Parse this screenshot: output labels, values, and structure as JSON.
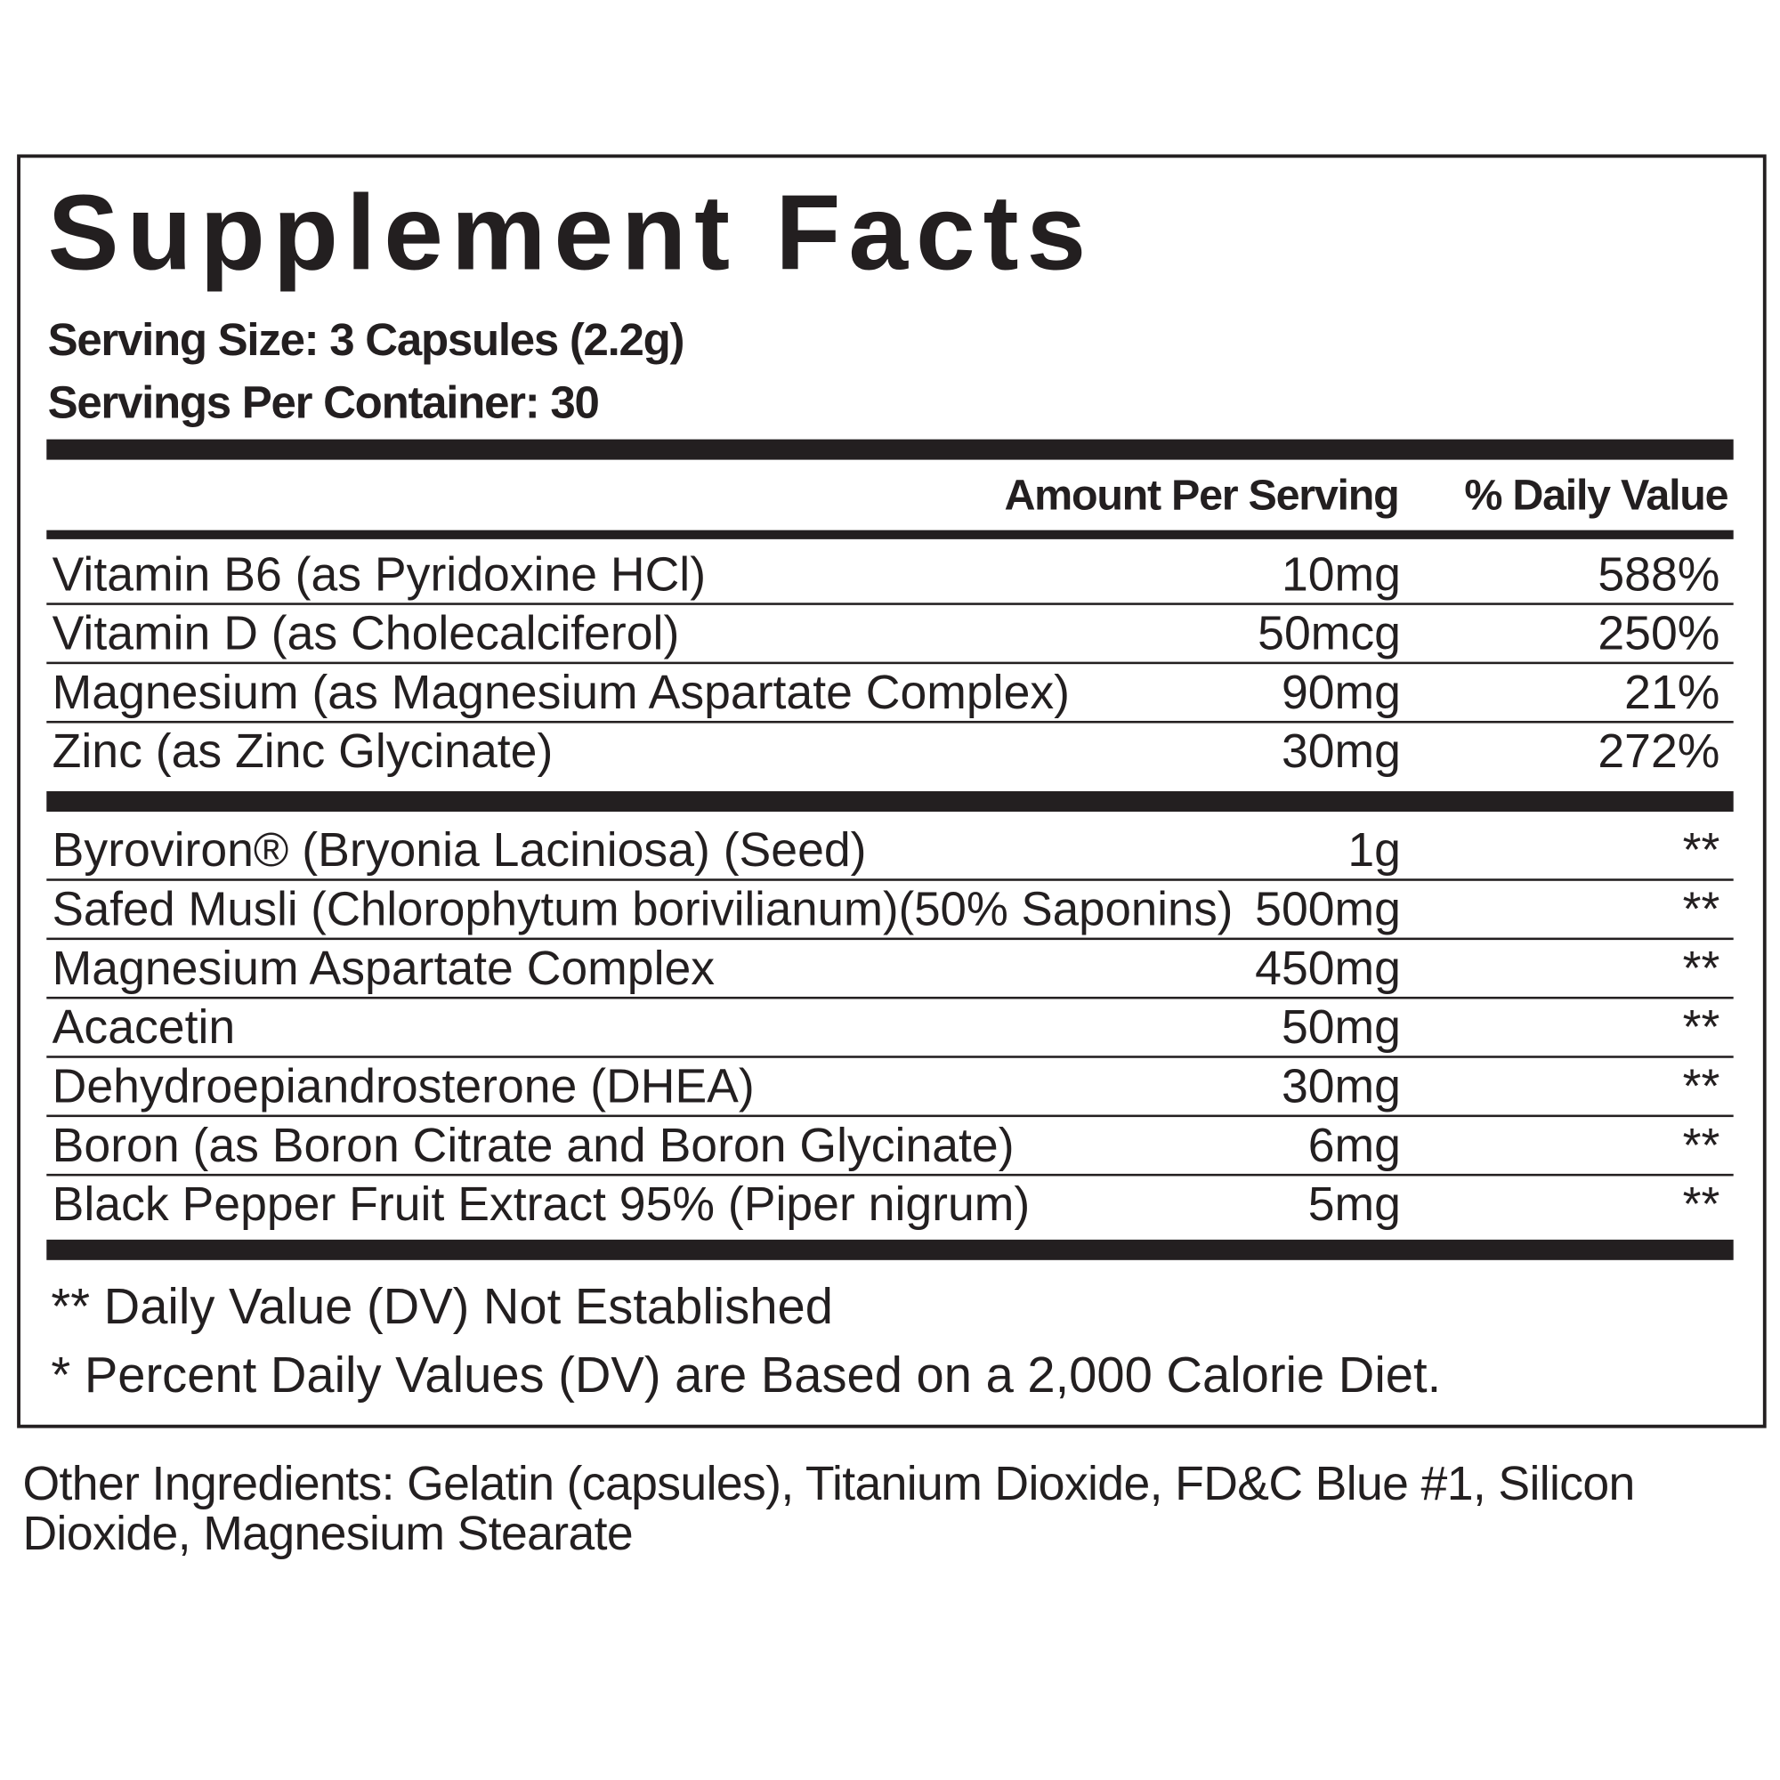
{
  "title": "Supplement Facts",
  "serving_size": "Serving Size: 3 Capsules (2.2g)",
  "servings_per_container": "Servings Per Container: 30",
  "headers": {
    "amount": "Amount Per Serving",
    "dv": "% Daily Value"
  },
  "vitamins": [
    {
      "name": "Vitamin B6 (as Pyridoxine HCl)",
      "amount": "10mg",
      "dv": "588%"
    },
    {
      "name": "Vitamin D (as Cholecalciferol)",
      "amount": "50mcg",
      "dv": "250%"
    },
    {
      "name": "Magnesium (as Magnesium Aspartate Complex)",
      "amount": "90mg",
      "dv": "21%"
    },
    {
      "name": "Zinc (as Zinc Glycinate)",
      "amount": "30mg",
      "dv": "272%"
    }
  ],
  "blend": [
    {
      "name": "Byroviron® (Bryonia Laciniosa) (Seed)",
      "amount": "1g",
      "dv": "**"
    },
    {
      "name": "Safed Musli (Chlorophytum borivilianum)(50% Saponins)",
      "amount": "500mg",
      "dv": "**"
    },
    {
      "name": "Magnesium Aspartate Complex",
      "amount": "450mg",
      "dv": "**"
    },
    {
      "name": "Acacetin",
      "amount": "50mg",
      "dv": "**"
    },
    {
      "name": "Dehydroepiandrosterone (DHEA)",
      "amount": "30mg",
      "dv": "**"
    },
    {
      "name": "Boron (as Boron Citrate and Boron Glycinate)",
      "amount": "6mg",
      "dv": "**"
    },
    {
      "name": "Black Pepper Fruit Extract 95% (Piper nigrum)",
      "amount": "5mg",
      "dv": "**"
    }
  ],
  "footnotes": [
    "** Daily Value (DV) Not Established",
    "* Percent Daily Values (DV) are Based on a 2,000 Calorie Diet."
  ],
  "other_ingredients": "Other Ingredients: Gelatin (capsules), Titanium Dioxide, FD&C Blue #1, Silicon Dioxide, Magnesium Stearate"
}
